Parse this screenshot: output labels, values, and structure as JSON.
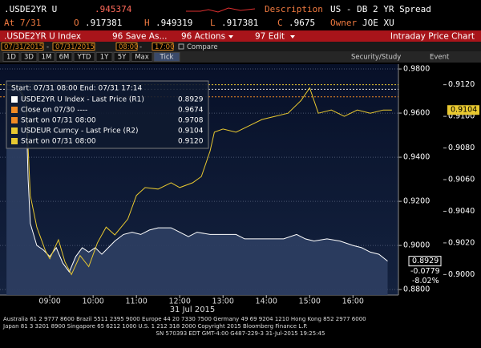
{
  "header": {
    "ticker": ".USDE2YR U",
    "last": ".945374",
    "description_label": "Description",
    "description": "US - DB 2 YR Spread",
    "at_label": "At 7/31",
    "open_label": "O",
    "open": ".917381",
    "high_label": "H",
    "high": ".949319",
    "low_label": "L",
    "low": ".917381",
    "close_label": "C",
    "close": ".9675",
    "owner_label": "Owner",
    "owner": "JOE XU"
  },
  "toolbar": {
    "security": ".USDE2YR U Index",
    "save": "96 Save As...",
    "actions": "96 Actions",
    "edit": "97 Edit",
    "view": "Intraday Price Chart"
  },
  "range": {
    "start_date": "07/31/2015",
    "dash": "-",
    "end_date": "07/31/2015",
    "start_time": "08:00",
    "end_time": "17:00",
    "compare": "Compare"
  },
  "periods": [
    "1D",
    "3D",
    "1M",
    "6M",
    "YTD",
    "1Y",
    "5Y",
    "Max",
    "Tick"
  ],
  "tools": {
    "study": "Security/Study",
    "event": "Event"
  },
  "footer": [
    "Australia 61 2 9777 8600 Brazil 5511 2395 9000 Europe 44 20 7330 7500 Germany 49 69 9204 1210 Hong Kong 852 2977 6000",
    "Japan 81 3 3201 8900        Singapore 65 6212 1000        U.S. 1 212 318 2000        Copyright 2015 Bloomberg Finance L.P.",
    "SN 570393 EDT  GMT-4:00 G487-229-3 31-Jul-2015 19:25:45"
  ],
  "chart_data": {
    "type": "line",
    "legend_title": "Start: 07/31 08:00 End: 07/31 17:14",
    "x_label": "31 Jul 2015",
    "xlim": [
      7.85,
      17.05
    ],
    "xticks": [
      {
        "value": 9,
        "label": "09:00"
      },
      {
        "value": 10,
        "label": "10:00"
      },
      {
        "value": 11,
        "label": "11:00"
      },
      {
        "value": 12,
        "label": "12:00"
      },
      {
        "value": 13,
        "label": "13:00"
      },
      {
        "value": 14,
        "label": "14:00"
      },
      {
        "value": 15,
        "label": "15:00"
      },
      {
        "value": 16,
        "label": "16:00"
      }
    ],
    "ylim": [
      0.8775,
      0.9822
    ],
    "yticks": [
      {
        "value": 0.98,
        "label": "0.9800"
      },
      {
        "value": 0.96,
        "label": "0.9600"
      },
      {
        "value": 0.94,
        "label": "0.9400"
      },
      {
        "value": 0.92,
        "label": "0.9200"
      },
      {
        "value": 0.9,
        "label": "0.9000"
      },
      {
        "value": 0.88,
        "label": "0.8800"
      }
    ],
    "y2lim": [
      0.8987,
      0.9133
    ],
    "y2ticks": [
      {
        "value": 0.912,
        "label": "0.9120"
      },
      {
        "value": 0.91,
        "label": "0.9100"
      },
      {
        "value": 0.908,
        "label": "0.9080"
      },
      {
        "value": 0.906,
        "label": "0.9060"
      },
      {
        "value": 0.904,
        "label": "0.9040"
      },
      {
        "value": 0.902,
        "label": "0.9020"
      },
      {
        "value": 0.9,
        "label": "0.9000"
      }
    ],
    "grid": true,
    "series": [
      {
        "name": "USDE2YR U Index - Last Price (R1)",
        "color": "#ffffff",
        "fill": "#2c3d60",
        "axis": "y",
        "x": [
          8.0,
          8.3,
          8.45,
          8.5,
          8.55,
          8.7,
          8.85,
          9.0,
          9.15,
          9.3,
          9.45,
          9.6,
          9.75,
          9.9,
          10.05,
          10.2,
          10.35,
          10.5,
          10.7,
          10.9,
          11.1,
          11.3,
          11.5,
          11.8,
          12.0,
          12.2,
          12.4,
          12.7,
          13.0,
          13.3,
          13.5,
          13.8,
          14.1,
          14.4,
          14.7,
          14.9,
          15.1,
          15.4,
          15.7,
          16.0,
          16.2,
          16.4,
          16.6,
          16.8
        ],
        "values": [
          0.9708,
          0.97,
          0.965,
          0.93,
          0.91,
          0.9,
          0.898,
          0.895,
          0.899,
          0.892,
          0.888,
          0.895,
          0.899,
          0.897,
          0.899,
          0.896,
          0.899,
          0.902,
          0.905,
          0.906,
          0.905,
          0.907,
          0.908,
          0.908,
          0.906,
          0.904,
          0.906,
          0.905,
          0.905,
          0.905,
          0.903,
          0.903,
          0.903,
          0.903,
          0.905,
          0.903,
          0.902,
          0.903,
          0.902,
          0.9,
          0.899,
          0.897,
          0.896,
          0.8929
        ]
      },
      {
        "name": "USDEUR Curncy - Last Price (R2)",
        "color": "#e8c830",
        "axis": "y2",
        "x": [
          8.0,
          8.3,
          8.45,
          8.55,
          8.7,
          8.9,
          9.0,
          9.2,
          9.35,
          9.5,
          9.7,
          9.9,
          10.1,
          10.3,
          10.5,
          10.8,
          11.0,
          11.2,
          11.5,
          11.8,
          12.0,
          12.3,
          12.5,
          12.7,
          12.8,
          13.0,
          13.3,
          13.6,
          13.9,
          14.2,
          14.5,
          14.8,
          15.0,
          15.2,
          15.5,
          15.8,
          16.1,
          16.4,
          16.7,
          16.9
        ],
        "values": [
          0.912,
          0.9118,
          0.911,
          0.905,
          0.903,
          0.9015,
          0.901,
          0.9022,
          0.9008,
          0.9,
          0.9012,
          0.9005,
          0.902,
          0.903,
          0.9025,
          0.9035,
          0.905,
          0.9055,
          0.9054,
          0.9058,
          0.9055,
          0.9058,
          0.9062,
          0.9078,
          0.909,
          0.9092,
          0.909,
          0.9094,
          0.9098,
          0.91,
          0.9102,
          0.911,
          0.9118,
          0.9102,
          0.9104,
          0.91,
          0.9104,
          0.9102,
          0.9104,
          0.9104
        ]
      }
    ],
    "reference_lines": [
      {
        "name": "Close on 07/30 ----",
        "value": 0.9674,
        "axis": "y",
        "color": "#f08a24"
      },
      {
        "name": "Start on 07/31 08:00",
        "value": 0.9708,
        "axis": "y",
        "color": "#dddddd"
      },
      {
        "name": "Start on 07/31 08:00",
        "value": 0.912,
        "value_label": "0.9120",
        "axis": "y2",
        "color": "#e8c830"
      }
    ],
    "change": {
      "value": -0.0779,
      "percent": -8.02,
      "percent_label": "-8.02%"
    }
  }
}
